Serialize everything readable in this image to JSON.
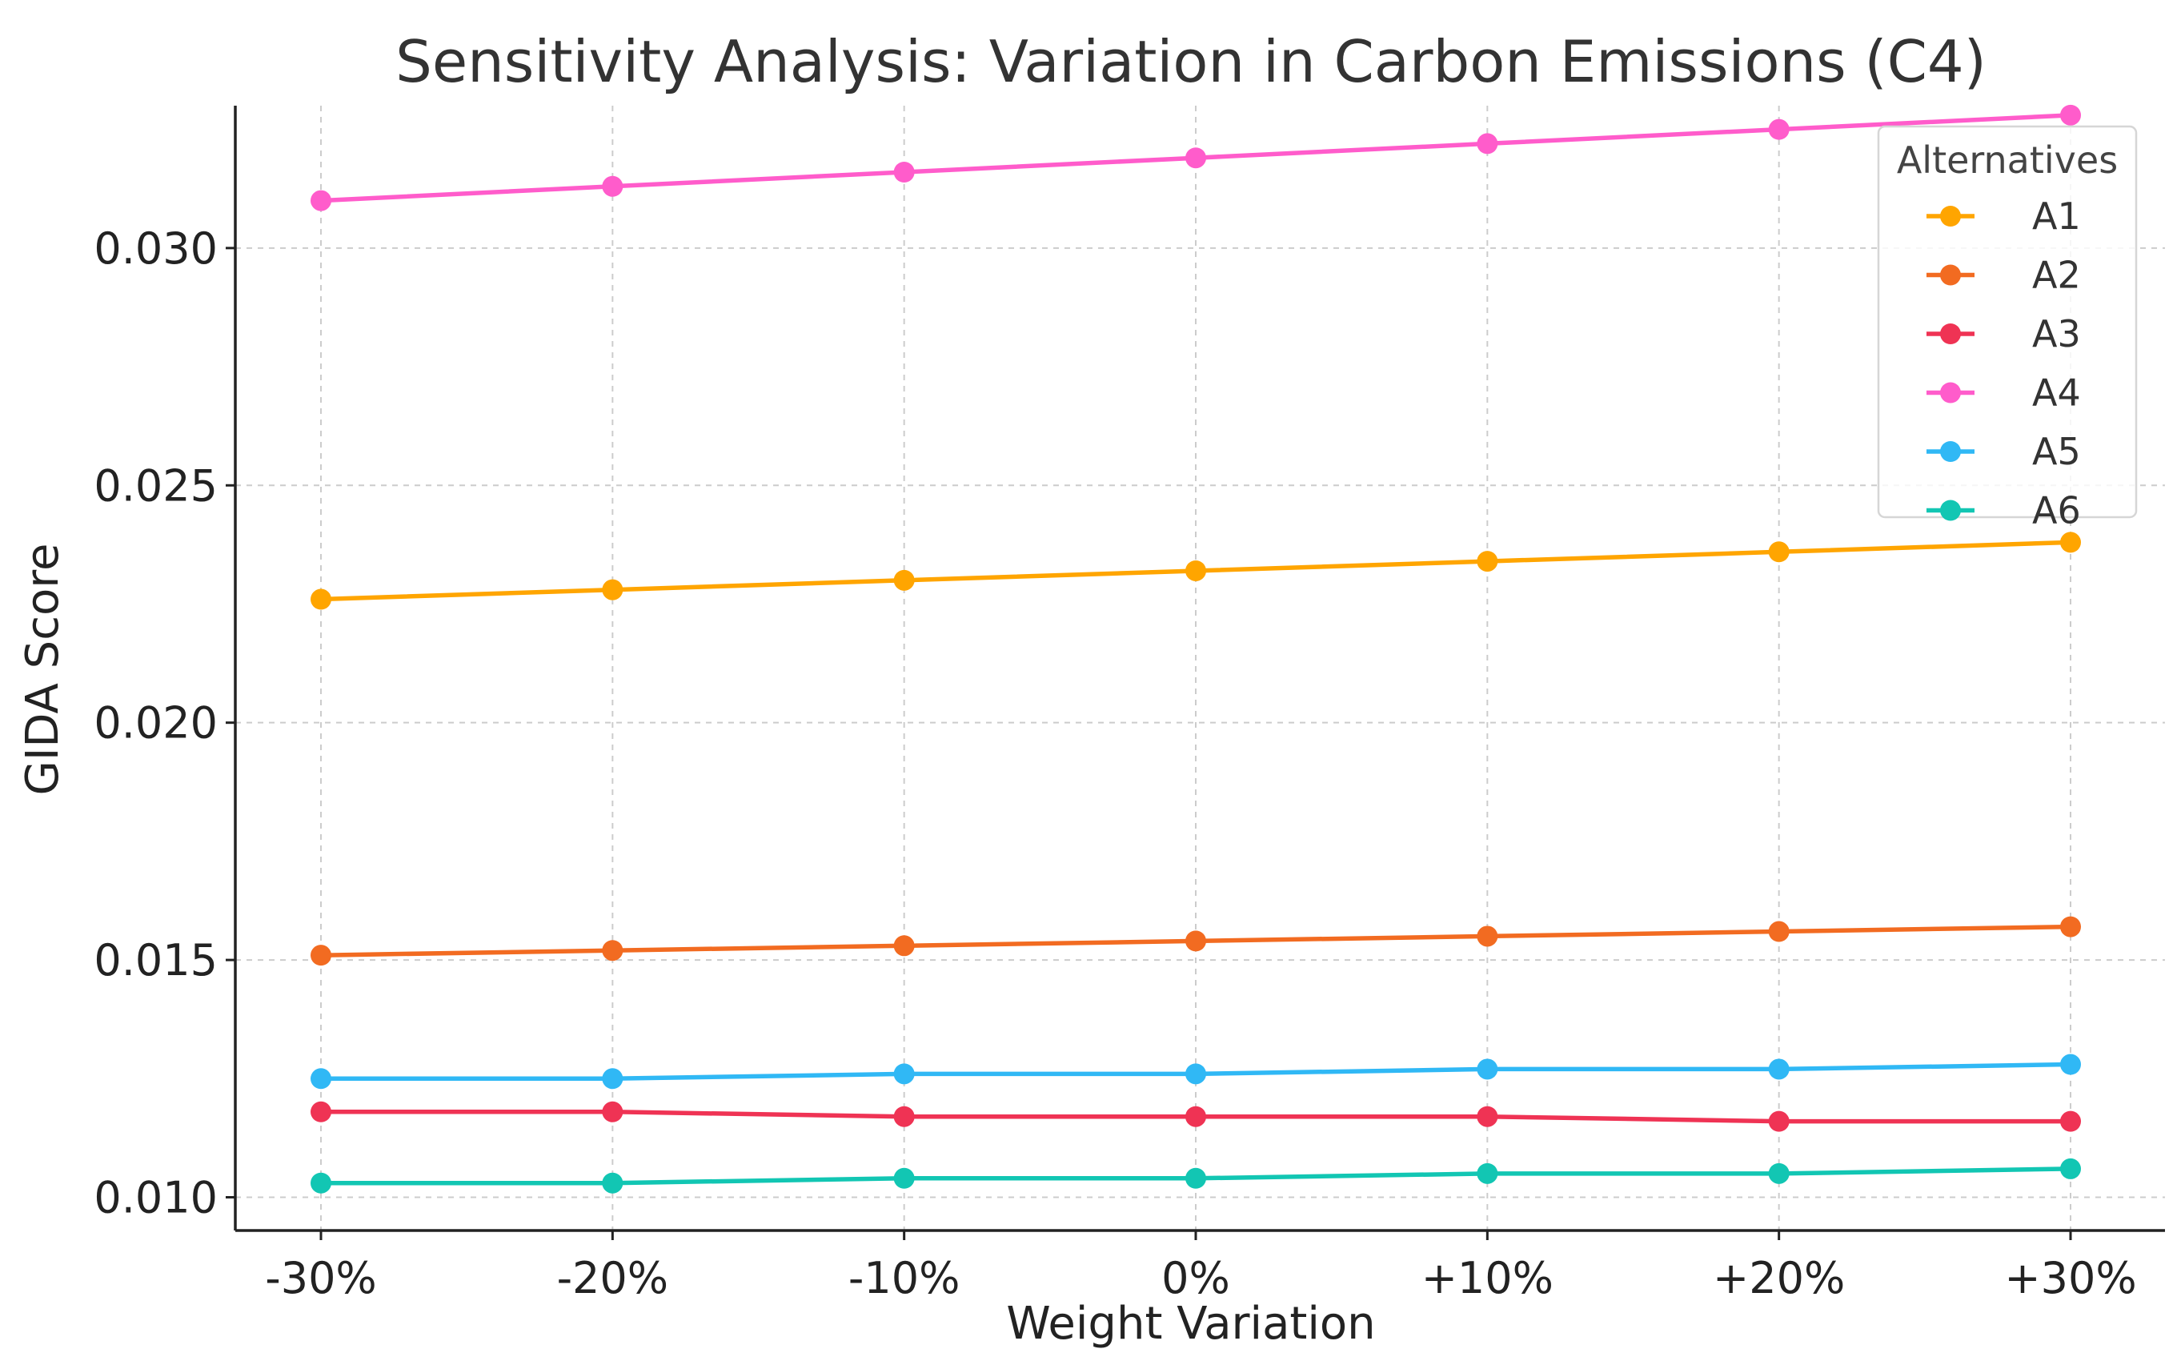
{
  "chart_data": {
    "type": "line",
    "title": "Sensitivity Analysis: Variation in Carbon Emissions (C4)",
    "xlabel": "Weight Variation",
    "ylabel": "GIDA Score",
    "categories": [
      "-30%",
      "-20%",
      "-10%",
      "0%",
      "+10%",
      "+20%",
      "+30%"
    ],
    "y_ticks": [
      0.01,
      0.015,
      0.02,
      0.025,
      0.03
    ],
    "y_tick_labels": [
      "0.010",
      "0.015",
      "0.020",
      "0.025",
      "0.030"
    ],
    "ylim": [
      0.0093,
      0.033
    ],
    "grid": true,
    "legend": {
      "title": "Alternatives",
      "placement": "top-right"
    },
    "series": [
      {
        "name": "A1",
        "color": "#FFA500",
        "values": [
          0.0226,
          0.0228,
          0.023,
          0.0232,
          0.0234,
          0.0236,
          0.0238
        ]
      },
      {
        "name": "A2",
        "color": "#F26B21",
        "values": [
          0.0151,
          0.0152,
          0.0153,
          0.0154,
          0.0155,
          0.0156,
          0.0157
        ]
      },
      {
        "name": "A3",
        "color": "#EF3354",
        "values": [
          0.0118,
          0.0118,
          0.0117,
          0.0117,
          0.0117,
          0.0116,
          0.0116
        ]
      },
      {
        "name": "A4",
        "color": "#FF5CCB",
        "values": [
          0.031,
          0.0313,
          0.0316,
          0.0319,
          0.0322,
          0.0325,
          0.0328
        ]
      },
      {
        "name": "A5",
        "color": "#30B8F5",
        "values": [
          0.0125,
          0.0125,
          0.0126,
          0.0126,
          0.0127,
          0.0127,
          0.0128
        ]
      },
      {
        "name": "A6",
        "color": "#12C6B3",
        "values": [
          0.0103,
          0.0103,
          0.0104,
          0.0104,
          0.0105,
          0.0105,
          0.0106
        ]
      }
    ]
  }
}
